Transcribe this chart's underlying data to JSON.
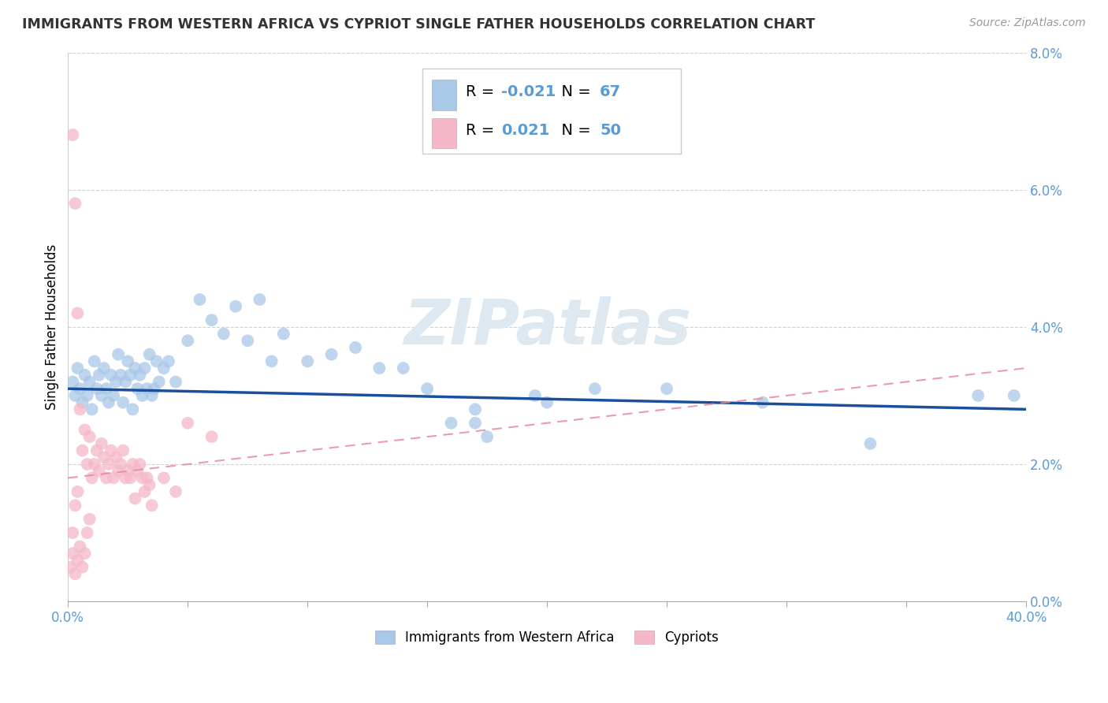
{
  "title": "IMMIGRANTS FROM WESTERN AFRICA VS CYPRIOT SINGLE FATHER HOUSEHOLDS CORRELATION CHART",
  "source": "Source: ZipAtlas.com",
  "ylabel": "Single Father Households",
  "legend_labels": [
    "Immigrants from Western Africa",
    "Cypriots"
  ],
  "r_blue": -0.021,
  "n_blue": 67,
  "r_pink": 0.021,
  "n_pink": 50,
  "xlim": [
    0.0,
    0.4
  ],
  "ylim": [
    0.0,
    0.08
  ],
  "xticks_labeled": [
    0.0,
    0.4
  ],
  "xticks_minor": [
    0.05,
    0.1,
    0.15,
    0.2,
    0.25,
    0.3,
    0.35
  ],
  "yticks": [
    0.0,
    0.02,
    0.04,
    0.06,
    0.08
  ],
  "blue_scatter_color": "#a8c8e8",
  "pink_scatter_color": "#f5b8c8",
  "blue_line_color": "#1a4fa0",
  "pink_line_color": "#e88aa0",
  "tick_label_color": "#5b9bd5",
  "grid_color": "#d0d0d0",
  "blue_legend_fill": "#a8c8e8",
  "pink_legend_fill": "#f5b8c8",
  "blue_dots": [
    [
      0.002,
      0.032
    ],
    [
      0.003,
      0.03
    ],
    [
      0.004,
      0.034
    ],
    [
      0.005,
      0.031
    ],
    [
      0.006,
      0.029
    ],
    [
      0.007,
      0.033
    ],
    [
      0.008,
      0.03
    ],
    [
      0.009,
      0.032
    ],
    [
      0.01,
      0.028
    ],
    [
      0.011,
      0.035
    ],
    [
      0.012,
      0.031
    ],
    [
      0.013,
      0.033
    ],
    [
      0.014,
      0.03
    ],
    [
      0.015,
      0.034
    ],
    [
      0.016,
      0.031
    ],
    [
      0.017,
      0.029
    ],
    [
      0.018,
      0.033
    ],
    [
      0.019,
      0.03
    ],
    [
      0.02,
      0.032
    ],
    [
      0.021,
      0.036
    ],
    [
      0.022,
      0.033
    ],
    [
      0.023,
      0.029
    ],
    [
      0.024,
      0.032
    ],
    [
      0.025,
      0.035
    ],
    [
      0.026,
      0.033
    ],
    [
      0.027,
      0.028
    ],
    [
      0.028,
      0.034
    ],
    [
      0.029,
      0.031
    ],
    [
      0.03,
      0.033
    ],
    [
      0.031,
      0.03
    ],
    [
      0.032,
      0.034
    ],
    [
      0.033,
      0.031
    ],
    [
      0.034,
      0.036
    ],
    [
      0.035,
      0.03
    ],
    [
      0.036,
      0.031
    ],
    [
      0.037,
      0.035
    ],
    [
      0.038,
      0.032
    ],
    [
      0.04,
      0.034
    ],
    [
      0.042,
      0.035
    ],
    [
      0.045,
      0.032
    ],
    [
      0.05,
      0.038
    ],
    [
      0.055,
      0.044
    ],
    [
      0.06,
      0.041
    ],
    [
      0.065,
      0.039
    ],
    [
      0.07,
      0.043
    ],
    [
      0.075,
      0.038
    ],
    [
      0.08,
      0.044
    ],
    [
      0.085,
      0.035
    ],
    [
      0.09,
      0.039
    ],
    [
      0.1,
      0.035
    ],
    [
      0.11,
      0.036
    ],
    [
      0.12,
      0.037
    ],
    [
      0.13,
      0.034
    ],
    [
      0.14,
      0.034
    ],
    [
      0.15,
      0.031
    ],
    [
      0.16,
      0.026
    ],
    [
      0.17,
      0.026
    ],
    [
      0.175,
      0.024
    ],
    [
      0.2,
      0.029
    ],
    [
      0.22,
      0.031
    ],
    [
      0.25,
      0.031
    ],
    [
      0.17,
      0.028
    ],
    [
      0.29,
      0.029
    ],
    [
      0.335,
      0.023
    ],
    [
      0.38,
      0.03
    ],
    [
      0.395,
      0.03
    ],
    [
      0.195,
      0.03
    ]
  ],
  "pink_dots": [
    [
      0.002,
      0.068
    ],
    [
      0.003,
      0.058
    ],
    [
      0.004,
      0.042
    ],
    [
      0.005,
      0.028
    ],
    [
      0.006,
      0.022
    ],
    [
      0.007,
      0.025
    ],
    [
      0.008,
      0.02
    ],
    [
      0.009,
      0.024
    ],
    [
      0.01,
      0.018
    ],
    [
      0.011,
      0.02
    ],
    [
      0.012,
      0.022
    ],
    [
      0.013,
      0.019
    ],
    [
      0.014,
      0.023
    ],
    [
      0.015,
      0.021
    ],
    [
      0.016,
      0.018
    ],
    [
      0.017,
      0.02
    ],
    [
      0.018,
      0.022
    ],
    [
      0.019,
      0.018
    ],
    [
      0.02,
      0.021
    ],
    [
      0.021,
      0.019
    ],
    [
      0.022,
      0.02
    ],
    [
      0.023,
      0.022
    ],
    [
      0.024,
      0.018
    ],
    [
      0.025,
      0.019
    ],
    [
      0.026,
      0.018
    ],
    [
      0.027,
      0.02
    ],
    [
      0.028,
      0.015
    ],
    [
      0.029,
      0.019
    ],
    [
      0.03,
      0.02
    ],
    [
      0.031,
      0.018
    ],
    [
      0.032,
      0.016
    ],
    [
      0.033,
      0.018
    ],
    [
      0.034,
      0.017
    ],
    [
      0.035,
      0.014
    ],
    [
      0.04,
      0.018
    ],
    [
      0.045,
      0.016
    ],
    [
      0.05,
      0.026
    ],
    [
      0.06,
      0.024
    ],
    [
      0.004,
      0.006
    ],
    [
      0.005,
      0.008
    ],
    [
      0.006,
      0.005
    ],
    [
      0.007,
      0.007
    ],
    [
      0.003,
      0.004
    ],
    [
      0.002,
      0.007
    ],
    [
      0.008,
      0.01
    ],
    [
      0.009,
      0.012
    ],
    [
      0.003,
      0.014
    ],
    [
      0.004,
      0.016
    ],
    [
      0.002,
      0.01
    ],
    [
      0.001,
      0.005
    ]
  ],
  "blue_trend": [
    0.0,
    0.4,
    0.031,
    0.028
  ],
  "pink_trend": [
    0.0,
    0.4,
    0.018,
    0.034
  ]
}
